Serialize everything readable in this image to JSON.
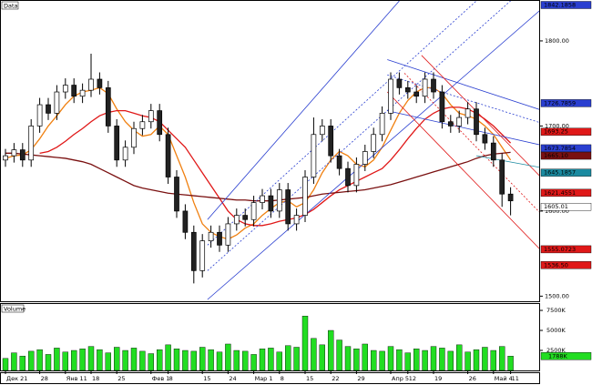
{
  "chart_data": [
    {
      "type": "candlestick",
      "title": "Data",
      "categories": [
        "Дек 21",
        null,
        null,
        null,
        "28",
        null,
        null,
        "Янв 11",
        null,
        null,
        "18",
        null,
        null,
        "25",
        null,
        null,
        null,
        "Фев 1",
        null,
        "8",
        null,
        null,
        null,
        "15",
        null,
        null,
        "24",
        null,
        null,
        "Мар 1",
        null,
        null,
        "8",
        null,
        null,
        "15",
        null,
        null,
        "22",
        null,
        null,
        "29",
        null,
        null,
        null,
        "Апр 5",
        null,
        "12",
        null,
        null,
        "19",
        null,
        null,
        null,
        "26",
        null,
        null,
        "Май 4",
        null,
        "11"
      ],
      "open": [
        1660,
        1665,
        1672,
        1660,
        1700,
        1725,
        1715,
        1740,
        1748,
        1735,
        1742,
        1755,
        1745,
        1700,
        1660,
        1675,
        1697,
        1705,
        1718,
        1690,
        1640,
        1600,
        1575,
        1530,
        1565,
        1575,
        1560,
        1585,
        1595,
        1590,
        1610,
        1618,
        1600,
        1625,
        1585,
        1595,
        1640,
        1690,
        1700,
        1665,
        1650,
        1630,
        1655,
        1670,
        1690,
        1715,
        1755,
        1745,
        1740,
        1735,
        1755,
        1740,
        1705,
        1700,
        1710,
        1720,
        1690,
        1680,
        1660,
        1620
      ],
      "high": [
        1673,
        1680,
        1680,
        1708,
        1733,
        1733,
        1748,
        1756,
        1756,
        1750,
        1785,
        1763,
        1753,
        1708,
        1683,
        1705,
        1713,
        1726,
        1726,
        1698,
        1648,
        1608,
        1583,
        1573,
        1583,
        1583,
        1593,
        1603,
        1603,
        1618,
        1626,
        1626,
        1633,
        1633,
        1603,
        1648,
        1710,
        1708,
        1708,
        1673,
        1658,
        1663,
        1678,
        1698,
        1723,
        1763,
        1763,
        1753,
        1748,
        1763,
        1763,
        1748,
        1713,
        1718,
        1728,
        1728,
        1698,
        1688,
        1668,
        1628
      ],
      "low": [
        1652,
        1657,
        1652,
        1652,
        1692,
        1707,
        1707,
        1732,
        1727,
        1727,
        1734,
        1737,
        1692,
        1652,
        1652,
        1667,
        1689,
        1697,
        1682,
        1632,
        1592,
        1567,
        1515,
        1522,
        1557,
        1552,
        1552,
        1577,
        1582,
        1582,
        1602,
        1592,
        1592,
        1577,
        1577,
        1587,
        1632,
        1682,
        1657,
        1642,
        1622,
        1622,
        1647,
        1662,
        1682,
        1707,
        1737,
        1732,
        1727,
        1727,
        1732,
        1697,
        1692,
        1692,
        1702,
        1682,
        1672,
        1652,
        1605,
        1595
      ],
      "close": [
        1665,
        1672,
        1660,
        1700,
        1725,
        1715,
        1740,
        1748,
        1735,
        1742,
        1755,
        1745,
        1700,
        1660,
        1675,
        1697,
        1705,
        1718,
        1690,
        1640,
        1600,
        1575,
        1530,
        1565,
        1575,
        1560,
        1585,
        1595,
        1590,
        1610,
        1618,
        1600,
        1625,
        1585,
        1595,
        1640,
        1690,
        1700,
        1665,
        1650,
        1630,
        1655,
        1670,
        1690,
        1715,
        1755,
        1745,
        1740,
        1735,
        1755,
        1740,
        1705,
        1700,
        1710,
        1720,
        1690,
        1680,
        1660,
        1620,
        1612
      ],
      "moving_averages": [
        {
          "color": "#f08010",
          "values": [
            1662,
            1665,
            1666,
            1672,
            1685,
            1700,
            1712,
            1725,
            1735,
            1740,
            1742,
            1745,
            1738,
            1720,
            1705,
            1695,
            1688,
            1690,
            1700,
            1690,
            1665,
            1640,
            1610,
            1585,
            1575,
            1570,
            1567,
            1572,
            1580,
            1585,
            1595,
            1603,
            1610,
            1612,
            1605,
            1610,
            1625,
            1645,
            1660,
            1670,
            1665,
            1655,
            1652,
            1660,
            1675,
            1695,
            1715,
            1730,
            1740,
            1745,
            1745,
            1738,
            1725,
            1715,
            1712,
            1708,
            1700,
            1690,
            1675,
            1660
          ]
        },
        {
          "color": "#e01818",
          "values": [
            null,
            null,
            null,
            null,
            1668,
            1670,
            1675,
            1682,
            1690,
            1697,
            1705,
            1712,
            1716,
            1718,
            1718,
            1715,
            1712,
            1710,
            1705,
            1695,
            1685,
            1675,
            1660,
            1645,
            1630,
            1615,
            1600,
            1590,
            1585,
            1583,
            1583,
            1585,
            1588,
            1590,
            1592,
            1596,
            1602,
            1610,
            1618,
            1625,
            1630,
            1635,
            1640,
            1645,
            1650,
            1660,
            1672,
            1685,
            1697,
            1708,
            1715,
            1720,
            1722,
            1722,
            1720,
            1715,
            1708,
            1700,
            1690,
            1680
          ]
        },
        {
          "color": "#7a1010",
          "values": [
            1668,
            1668,
            1667,
            1666,
            1665,
            1664,
            1663,
            1662,
            1660,
            1658,
            1655,
            1650,
            1645,
            1640,
            1635,
            1630,
            1627,
            1625,
            1623,
            1621,
            1620,
            1619,
            1618,
            1617,
            1616,
            1615,
            1614,
            1613,
            1613,
            1612,
            1612,
            1612,
            1613,
            1614,
            1615,
            1616,
            1618,
            1620,
            1621,
            1622,
            1623,
            1624,
            1625,
            1627,
            1629,
            1631,
            1634,
            1637,
            1640,
            1643,
            1646,
            1649,
            1652,
            1655,
            1658,
            1662,
            1665,
            1667,
            1668,
            1669
          ]
        }
      ],
      "trendlines": [
        {
          "color": "#2a3fd0",
          "dash": false,
          "from": [
            23.6,
            1590
          ],
          "to": [
            46,
            1847
          ]
        },
        {
          "color": "#2a3fd0",
          "dash": false,
          "from": [
            23.6,
            1496
          ],
          "to": [
            63.7,
            1847
          ]
        },
        {
          "color": "#2a3fd0",
          "dash": true,
          "from": [
            23.6,
            1560
          ],
          "to": [
            55,
            1847
          ]
        },
        {
          "color": "#2a3fd0",
          "dash": true,
          "from": [
            23.6,
            1530
          ],
          "to": [
            59,
            1847
          ]
        },
        {
          "color": "#2a3fd0",
          "dash": false,
          "from": [
            44.6,
            1778
          ],
          "to": [
            63.7,
            1715
          ]
        },
        {
          "color": "#2a3fd0",
          "dash": true,
          "from": [
            44.6,
            1760
          ],
          "to": [
            63.7,
            1700
          ]
        },
        {
          "color": "#2a3fd0",
          "dash": false,
          "from": [
            44.6,
            1718
          ],
          "to": [
            63.7,
            1675
          ]
        },
        {
          "color": "#e01818",
          "dash": false,
          "from": [
            48.6,
            1783
          ],
          "to": [
            63.7,
            1628
          ]
        },
        {
          "color": "#e01818",
          "dash": true,
          "from": [
            46.6,
            1762
          ],
          "to": [
            63.7,
            1585
          ]
        },
        {
          "color": "#e01818",
          "dash": false,
          "from": [
            44.6,
            1740
          ],
          "to": [
            63.7,
            1542
          ]
        },
        {
          "color": "#1a8aa0",
          "dash": false,
          "from": [
            55,
            1665
          ],
          "to": [
            63.7,
            1649
          ]
        }
      ],
      "price_labels": [
        {
          "value": 1842.1858,
          "label": "1842.1858",
          "color": "#2a3fd0"
        },
        {
          "value": 1726.7859,
          "label": "1726.7859",
          "color": "#2a3fd0"
        },
        {
          "value": 1693.25,
          "label": "1693.25",
          "color": "#e01818"
        },
        {
          "value": 1673.7854,
          "label": "1673.7854",
          "color": "#2a3fd0"
        },
        {
          "value": 1665.1,
          "label": "1665.10",
          "color": "#7a1010"
        },
        {
          "value": 1645.1857,
          "label": "1645.1857",
          "color": "#1a8aa0"
        },
        {
          "value": 1621.4551,
          "label": "1621.4551",
          "color": "#e01818"
        },
        {
          "value": 1605.01,
          "label": "1605.01",
          "color": "#000000"
        },
        {
          "value": 1555.0723,
          "label": "1555.0723",
          "color": "#e01818"
        },
        {
          "value": 1536.5,
          "label": "1536.50",
          "color": "#e01818"
        }
      ],
      "ylim": [
        1494,
        1847
      ],
      "yticks": [
        {
          "value": 1500,
          "label": "1500.00"
        },
        {
          "value": 1600,
          "label": "1600.00"
        },
        {
          "value": 1700,
          "label": "1700.00"
        },
        {
          "value": 1800,
          "label": "1800.00"
        }
      ]
    },
    {
      "type": "bar",
      "title": "Volume",
      "color": "#22dd22",
      "values": [
        1500,
        2200,
        1800,
        2400,
        2600,
        2000,
        2800,
        2300,
        2500,
        2700,
        3000,
        2600,
        2200,
        2900,
        2500,
        2800,
        2400,
        2100,
        2600,
        3200,
        2700,
        2500,
        2400,
        2900,
        2600,
        2300,
        3300,
        2500,
        2400,
        2000,
        2700,
        2800,
        2300,
        3100,
        2900,
        6800,
        4000,
        3200,
        5000,
        3800,
        3000,
        2700,
        3300,
        2500,
        2400,
        3000,
        2600,
        2200,
        2700,
        2500,
        3000,
        2800,
        2400,
        3200,
        2300,
        2600,
        2900,
        2500,
        3000,
        1788
      ],
      "last_label": {
        "value": 1788,
        "label": "1788K"
      },
      "ylim": [
        0,
        8300
      ],
      "yticks": [
        {
          "value": 2500,
          "label": "2500K"
        },
        {
          "value": 5000,
          "label": "5000K"
        },
        {
          "value": 7500,
          "label": "7500K"
        }
      ]
    }
  ]
}
